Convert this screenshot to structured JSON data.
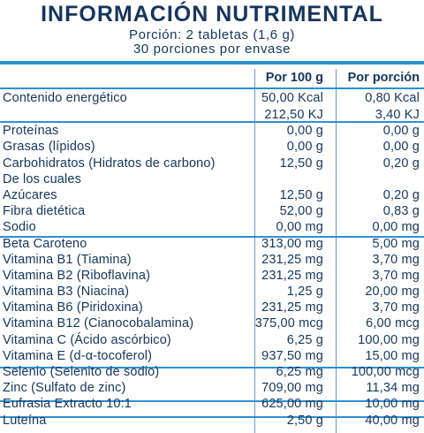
{
  "title": "INFORMACIÓN NUTRIMENTAL",
  "portion": "Porción: 2 tabletas (1,6 g)",
  "servings": "30 porciones por envase",
  "columns": {
    "per100": "Por 100 g",
    "perPortion": "Por porción"
  },
  "rows": [
    {
      "name": "Contenido energético",
      "v100": "50,00 Kcal",
      "vpor": "0,80 Kcal"
    },
    {
      "name": "",
      "v100": "212,50 KJ",
      "vpor": "3,40 KJ"
    },
    {
      "name": "Proteínas",
      "v100": "0,00 g",
      "vpor": "0,00 g"
    },
    {
      "name": "Grasas (lípidos)",
      "v100": "0,00 g",
      "vpor": "0,00 g"
    },
    {
      "name": "Carbohidratos (Hidratos de carbono)",
      "v100": "12,50 g",
      "vpor": "0,20 g"
    },
    {
      "name": "De los cuales",
      "v100": "",
      "vpor": ""
    },
    {
      "name": "Azúcares",
      "v100": "12,50 g",
      "vpor": "0,20 g"
    },
    {
      "name": "Fibra dietética",
      "v100": "52,00 g",
      "vpor": "0,83 g"
    },
    {
      "name": "Sodio",
      "v100": "0,00 mg",
      "vpor": "0,00 mg"
    },
    {
      "name": "Beta Caroteno",
      "v100": "313,00 mg",
      "vpor": "5,00 mg"
    },
    {
      "name": "Vitamina B1 (Tiamina)",
      "v100": "231,25 mg",
      "vpor": "3,70 mg"
    },
    {
      "name": "Vitamina B2 (Riboflavina)",
      "v100": "231,25 mg",
      "vpor": "3,70 mg"
    },
    {
      "name": "Vitamina B3 (Niacina)",
      "v100": "1,25 g",
      "vpor": "20,00 mg"
    },
    {
      "name": "Vitamina B6 (Piridoxina)",
      "v100": "231,25 mg",
      "vpor": "3,70 mg"
    },
    {
      "name": "Vitamina B12 (Cianocobalamina)",
      "v100": "375,00 mcg",
      "vpor": "6,00 mcg"
    },
    {
      "name": "Vitamina C (Ácido ascórbico)",
      "v100": "6,25 g",
      "vpor": "100,00 mg"
    },
    {
      "name": "Vitamina E (d-α-tocoferol)",
      "v100": "937,50 mg",
      "vpor": "15,00 mg"
    },
    {
      "name": "Selenio (Selenito de sodio)",
      "v100": "6,25 mg",
      "vpor": "100,00 mcg"
    },
    {
      "name": "Zinc (Sulfato de zinc)",
      "v100": "709,00 mg",
      "vpor": "11,34 mg"
    },
    {
      "name": "Eufrasia Extracto 10:1",
      "v100": "625,00 mg",
      "vpor": "10,00 mg"
    },
    {
      "name": "Luteína",
      "v100": "2,50 g",
      "vpor": "40,00 mg"
    }
  ],
  "colors": {
    "text": "#16355e",
    "accent": "#2f8fd0"
  }
}
